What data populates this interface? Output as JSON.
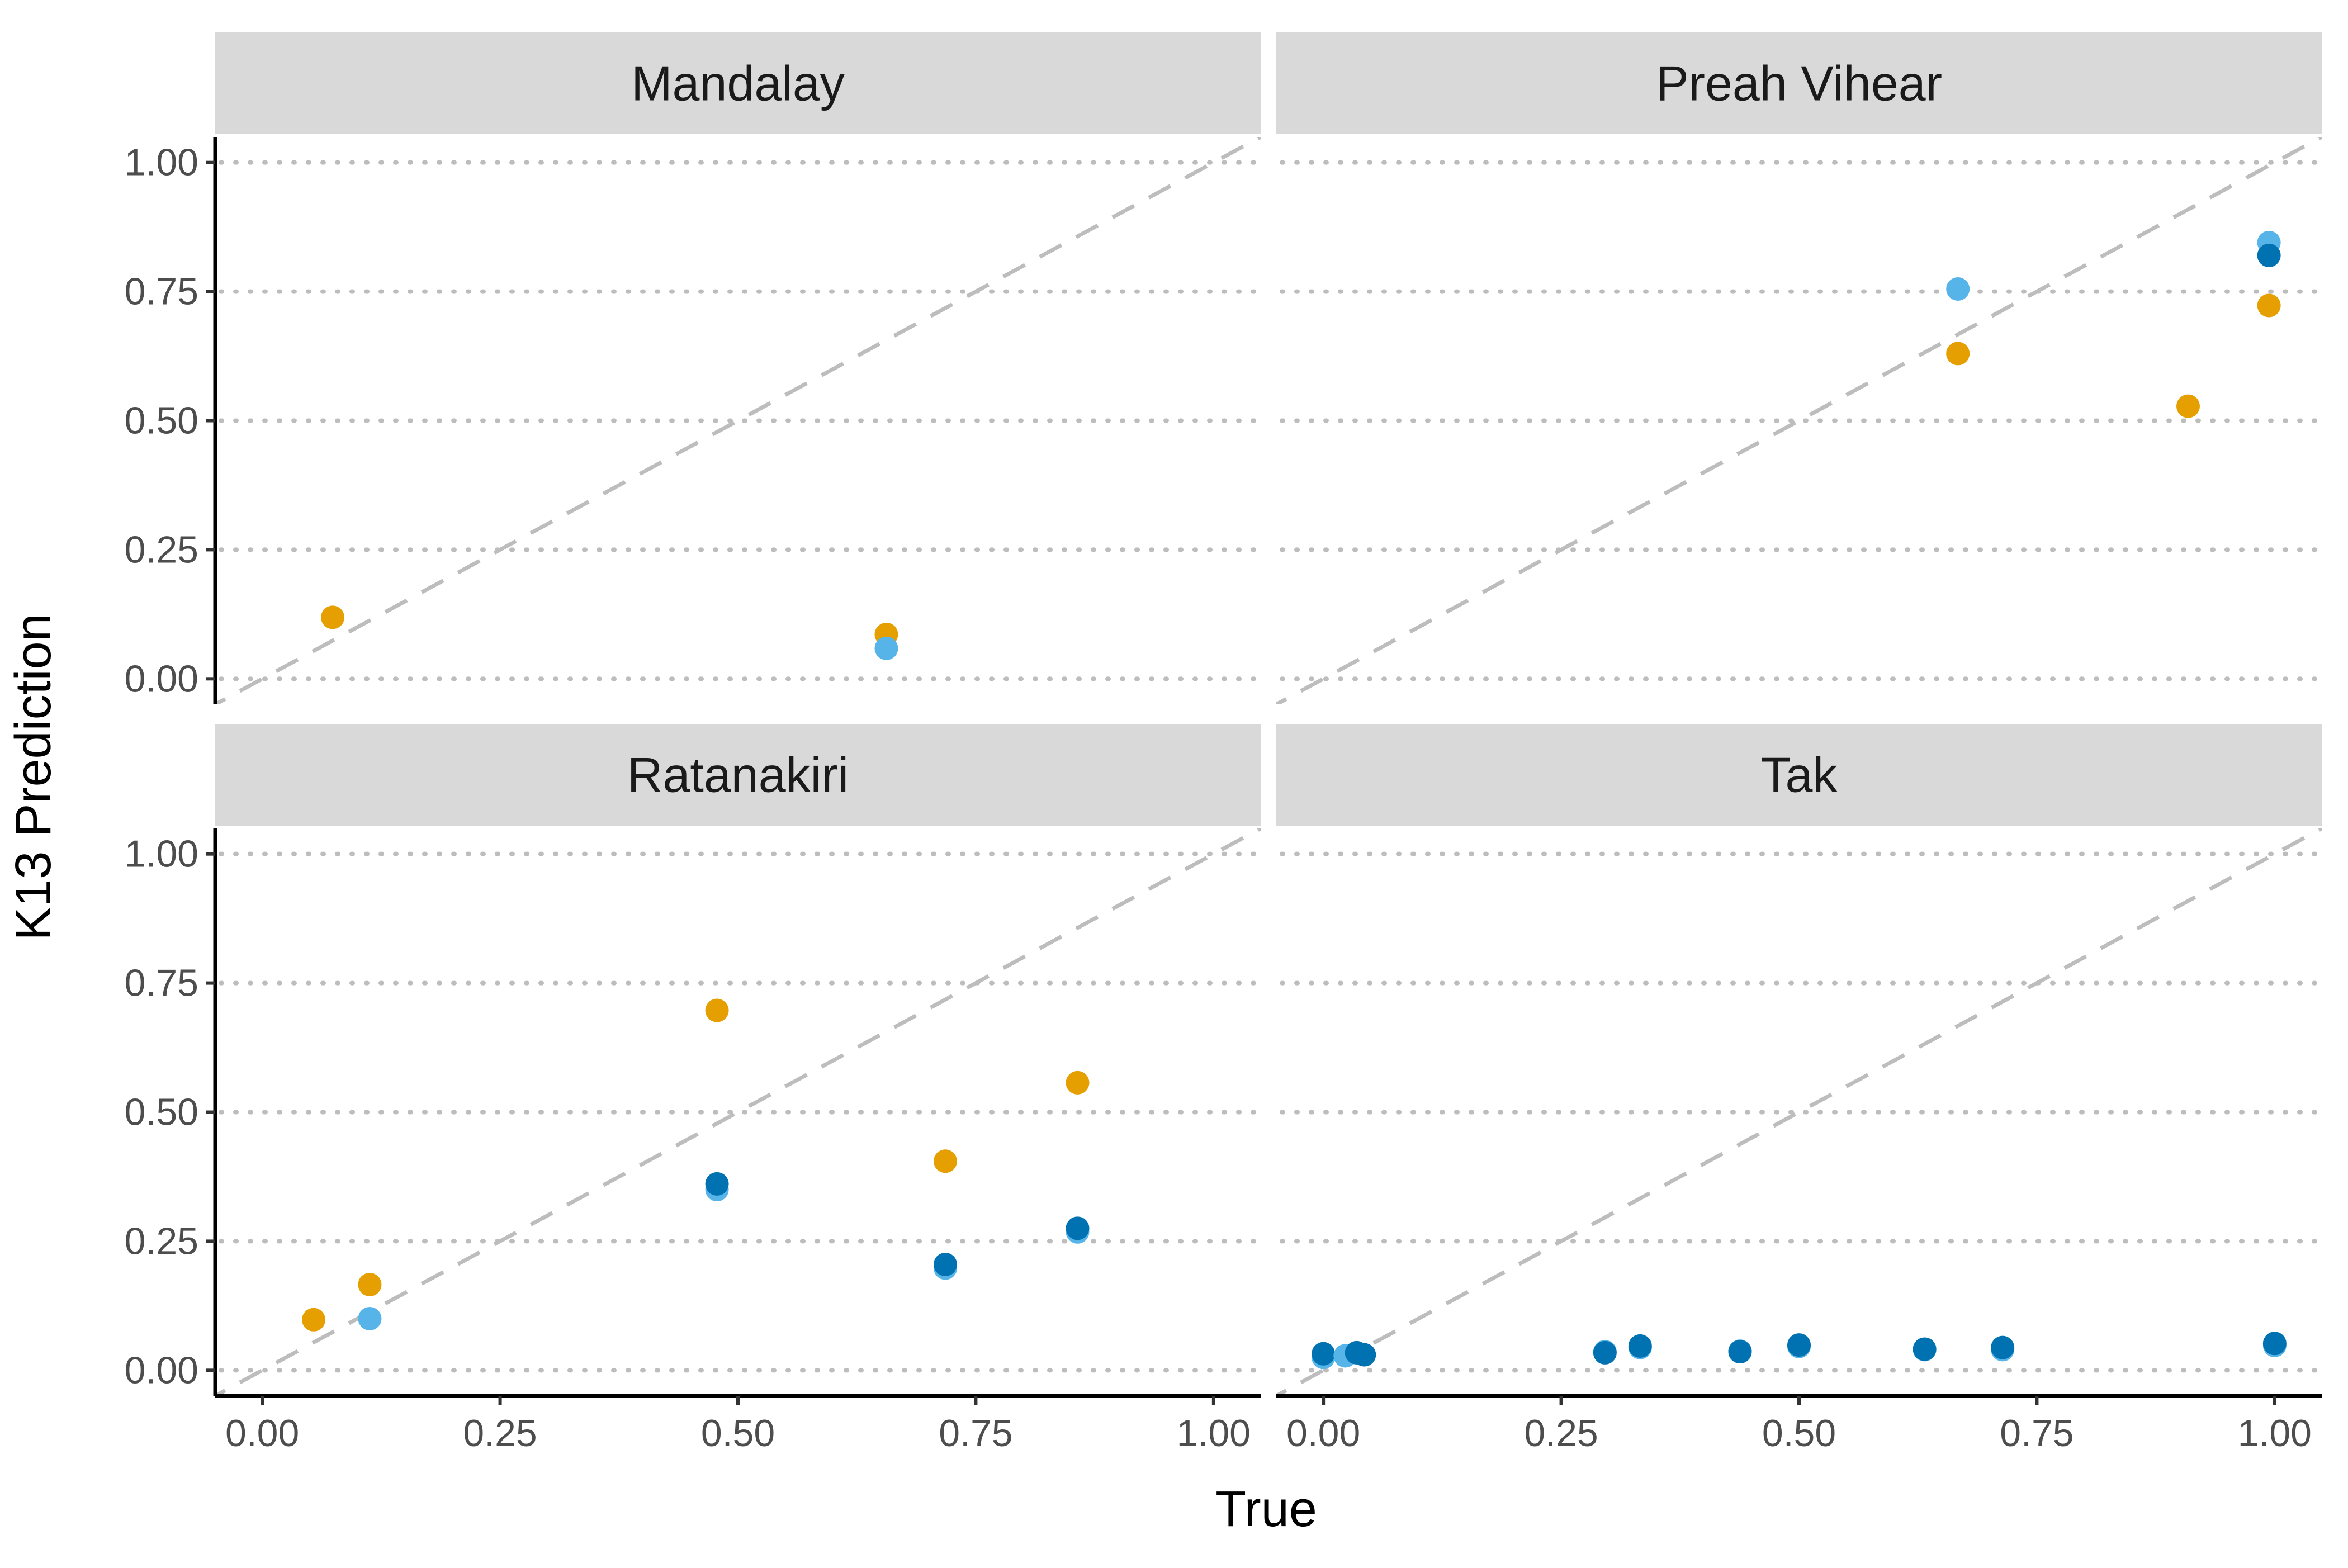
{
  "chart_data": {
    "type": "scatter",
    "xlabel": "True",
    "ylabel": "K13 Prediction",
    "xlim": [
      0,
      1
    ],
    "ylim": [
      0,
      1
    ],
    "x_ticks": [
      "0.00",
      "0.25",
      "0.50",
      "0.75",
      "1.00"
    ],
    "y_ticks": [
      "0.00",
      "0.25",
      "0.50",
      "0.75",
      "1.00"
    ],
    "grid": "horizontal dotted at y ticks",
    "reference_line": "y = x dashed",
    "legend": "none",
    "colors": [
      "#E69F00",
      "#56B4E9",
      "#0072B2"
    ],
    "panels": [
      {
        "title": "Mandalay",
        "points": [
          {
            "x": 0.074,
            "y": 0.119,
            "color": 0
          },
          {
            "x": 0.656,
            "y": 0.086,
            "color": 0
          },
          {
            "x": 0.656,
            "y": 0.059,
            "color": 1
          }
        ]
      },
      {
        "title": "Preah Vihear",
        "points": [
          {
            "x": 0.667,
            "y": 0.755,
            "color": 1
          },
          {
            "x": 0.667,
            "y": 0.63,
            "color": 0
          },
          {
            "x": 0.909,
            "y": 0.528,
            "color": 0
          },
          {
            "x": 0.994,
            "y": 0.845,
            "color": 1
          },
          {
            "x": 0.994,
            "y": 0.82,
            "color": 2
          },
          {
            "x": 0.994,
            "y": 0.723,
            "color": 0
          }
        ]
      },
      {
        "title": "Ratanakiri",
        "points": [
          {
            "x": 0.054,
            "y": 0.098,
            "color": 0
          },
          {
            "x": 0.113,
            "y": 0.166,
            "color": 0
          },
          {
            "x": 0.113,
            "y": 0.1,
            "color": 1
          },
          {
            "x": 0.478,
            "y": 0.697,
            "color": 0
          },
          {
            "x": 0.478,
            "y": 0.35,
            "color": 1
          },
          {
            "x": 0.478,
            "y": 0.361,
            "color": 2
          },
          {
            "x": 0.718,
            "y": 0.405,
            "color": 0
          },
          {
            "x": 0.718,
            "y": 0.198,
            "color": 1
          },
          {
            "x": 0.718,
            "y": 0.205,
            "color": 2
          },
          {
            "x": 0.857,
            "y": 0.557,
            "color": 0
          },
          {
            "x": 0.857,
            "y": 0.268,
            "color": 1
          },
          {
            "x": 0.857,
            "y": 0.275,
            "color": 2
          }
        ]
      },
      {
        "title": "Tak",
        "points": [
          {
            "x": 0.0,
            "y": 0.025,
            "color": 1
          },
          {
            "x": 0.0,
            "y": 0.032,
            "color": 2
          },
          {
            "x": 0.023,
            "y": 0.028,
            "color": 1
          },
          {
            "x": 0.035,
            "y": 0.034,
            "color": 2
          },
          {
            "x": 0.043,
            "y": 0.03,
            "color": 2
          },
          {
            "x": 0.296,
            "y": 0.036,
            "color": 1
          },
          {
            "x": 0.296,
            "y": 0.034,
            "color": 2
          },
          {
            "x": 0.333,
            "y": 0.044,
            "color": 1
          },
          {
            "x": 0.333,
            "y": 0.047,
            "color": 2
          },
          {
            "x": 0.438,
            "y": 0.037,
            "color": 1
          },
          {
            "x": 0.438,
            "y": 0.036,
            "color": 2
          },
          {
            "x": 0.5,
            "y": 0.046,
            "color": 1
          },
          {
            "x": 0.5,
            "y": 0.049,
            "color": 2
          },
          {
            "x": 0.632,
            "y": 0.04,
            "color": 1
          },
          {
            "x": 0.632,
            "y": 0.041,
            "color": 2
          },
          {
            "x": 0.714,
            "y": 0.04,
            "color": 1
          },
          {
            "x": 0.714,
            "y": 0.044,
            "color": 2
          },
          {
            "x": 1.0,
            "y": 0.048,
            "color": 1
          },
          {
            "x": 1.0,
            "y": 0.052,
            "color": 2
          }
        ]
      }
    ]
  }
}
